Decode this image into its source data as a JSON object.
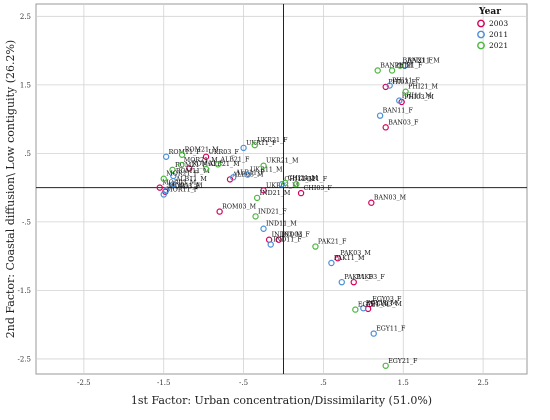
{
  "chart_data": {
    "type": "scatter",
    "title": "",
    "xlabel": "1st Factor: Urban concentration/Dissimilarity  (51.0%)",
    "ylabel": "2nd Factor:  Coastal diffusion\\ Low  contiguity (26.2%)",
    "xlim": [
      -3.1,
      3.05
    ],
    "ylim": [
      -2.72,
      2.68
    ],
    "x_ticks": [
      -2.5,
      -1.5,
      -0.5,
      0.5,
      1.5,
      2.5
    ],
    "x_tick_labels": [
      "-2.5",
      "-1.5",
      "-.5",
      ".5",
      "1.5",
      "2.5"
    ],
    "y_ticks": [
      2.5,
      1.5,
      0.5,
      -0.5,
      -1.5,
      -2.5
    ],
    "y_tick_labels": [
      "2.5",
      "1.5",
      ".5",
      "-.5",
      "-1.5",
      "-2.5"
    ],
    "grid": true,
    "reference_lines": {
      "x": 0,
      "y": 0
    },
    "legend": {
      "title": "Year",
      "placement": "top-right",
      "entries": [
        {
          "label": "2003",
          "color": "#d6005a"
        },
        {
          "label": "2011",
          "color": "#4a8fd8"
        },
        {
          "label": "2021",
          "color": "#49b83c"
        }
      ]
    },
    "series": [
      {
        "name": "2003",
        "color": "#d6005a",
        "points": [
          {
            "label": "BAN03_F",
            "x": 1.28,
            "y": 0.88
          },
          {
            "label": "BAN03_M",
            "x": 1.1,
            "y": -0.22
          },
          {
            "label": "PHI03_F",
            "x": 1.28,
            "y": 1.47
          },
          {
            "label": "PHI03_M",
            "x": 1.48,
            "y": 1.25
          },
          {
            "label": "ROM03_M",
            "x": -0.8,
            "y": -0.35
          },
          {
            "label": "ROM03_F",
            "x": -1.18,
            "y": 0.28
          },
          {
            "label": "MOR03_F",
            "x": -1.48,
            "y": -0.06
          },
          {
            "label": "MOR03_M",
            "x": -1.55,
            "y": 0.0
          },
          {
            "label": "ALB03_M",
            "x": -0.67,
            "y": 0.12
          },
          {
            "label": "IND03_M",
            "x": -0.18,
            "y": -0.76
          },
          {
            "label": "IND03_F",
            "x": -0.06,
            "y": -0.76
          },
          {
            "label": "UKR03_F",
            "x": -0.97,
            "y": 0.45
          },
          {
            "label": "UKR03_M",
            "x": -0.25,
            "y": -0.04
          },
          {
            "label": "CHI03_F",
            "x": 0.22,
            "y": -0.08
          },
          {
            "label": "PAK03_M",
            "x": 0.68,
            "y": -1.03
          },
          {
            "label": "PAK03_F",
            "x": 0.88,
            "y": -1.38
          },
          {
            "label": "EGY03_F",
            "x": 1.08,
            "y": -1.7
          },
          {
            "label": "EGY03_M",
            "x": 1.06,
            "y": -1.77
          }
        ]
      },
      {
        "name": "2011",
        "color": "#4a8fd8",
        "points": [
          {
            "label": "BAN11_M",
            "x": 1.52,
            "y": 1.78
          },
          {
            "label": "BAN11_F",
            "x": 1.21,
            "y": 1.05
          },
          {
            "label": "PHI11_F",
            "x": 1.33,
            "y": 1.49
          },
          {
            "label": "PHI11_M",
            "x": 1.45,
            "y": 1.27
          },
          {
            "label": "ROM11_F",
            "x": -1.47,
            "y": 0.45
          },
          {
            "label": "ROM11_M",
            "x": -1.38,
            "y": 0.17
          },
          {
            "label": "MOR11_F",
            "x": -1.5,
            "y": -0.1
          },
          {
            "label": "MOR11_M",
            "x": -1.47,
            "y": -0.04
          },
          {
            "label": "ALB11_M",
            "x": -1.38,
            "y": 0.05
          },
          {
            "label": "ALB11_F",
            "x": -0.63,
            "y": 0.15
          },
          {
            "label": "UKR11_F",
            "x": -0.5,
            "y": 0.58
          },
          {
            "label": "UKR11_M",
            "x": -0.45,
            "y": 0.19
          },
          {
            "label": "CHI11_M",
            "x": -0.02,
            "y": 0.05
          },
          {
            "label": "IND11_M",
            "x": -0.25,
            "y": -0.6
          },
          {
            "label": "IND11_F",
            "x": -0.16,
            "y": -0.83
          },
          {
            "label": "PAK11_M",
            "x": 0.6,
            "y": -1.1
          },
          {
            "label": "PAK11_F",
            "x": 0.73,
            "y": -1.38
          },
          {
            "label": "EGY11_M",
            "x": 1.0,
            "y": -1.76
          },
          {
            "label": "EGY11_F",
            "x": 1.13,
            "y": -2.13
          }
        ]
      },
      {
        "name": "2021",
        "color": "#49b83c",
        "points": [
          {
            "label": "BAN21_F",
            "x": 1.46,
            "y": 1.78
          },
          {
            "label": "BAN21_M",
            "x": 1.18,
            "y": 1.71
          },
          {
            "label": "PHI21_F",
            "x": 1.36,
            "y": 1.71
          },
          {
            "label": "PHI21_M",
            "x": 1.53,
            "y": 1.4
          },
          {
            "label": "ROM21_M",
            "x": -1.27,
            "y": 0.48
          },
          {
            "label": "ROM21_F",
            "x": -1.39,
            "y": 0.26
          },
          {
            "label": "MOR21_M",
            "x": -1.28,
            "y": 0.33
          },
          {
            "label": "MOR21_F",
            "x": -1.5,
            "y": 0.13
          },
          {
            "label": "ALB21_M",
            "x": -0.97,
            "y": 0.27
          },
          {
            "label": "ALB21_F",
            "x": -0.82,
            "y": 0.34
          },
          {
            "label": "UKR21_F",
            "x": -0.36,
            "y": 0.62
          },
          {
            "label": "UKR21_M",
            "x": -0.25,
            "y": 0.32
          },
          {
            "label": "CHI21_M",
            "x": 0.02,
            "y": 0.07
          },
          {
            "label": "CHI21_F",
            "x": 0.16,
            "y": 0.05
          },
          {
            "label": "IND21_F",
            "x": -0.35,
            "y": -0.42
          },
          {
            "label": "IND21_M",
            "x": -0.33,
            "y": -0.15
          },
          {
            "label": "PAK21_F",
            "x": 0.4,
            "y": -0.86
          },
          {
            "label": "EGY21_M",
            "x": 0.9,
            "y": -1.78
          },
          {
            "label": "EGY21_F",
            "x": 1.28,
            "y": -2.6
          }
        ]
      }
    ]
  }
}
